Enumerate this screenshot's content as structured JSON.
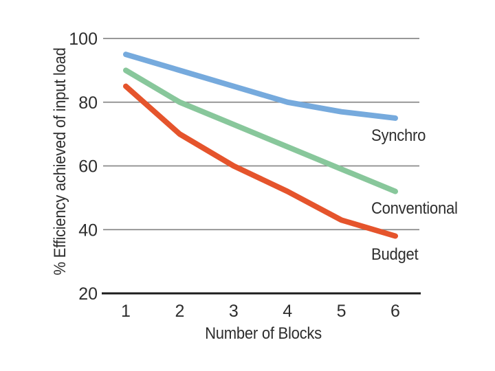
{
  "chart_data": {
    "type": "line",
    "title": "",
    "xlabel": "Number of Blocks",
    "ylabel": "% Efficiency achieved of input load",
    "x": [
      1,
      2,
      3,
      4,
      5,
      6
    ],
    "x_ticks": [
      "1",
      "2",
      "3",
      "4",
      "5",
      "6"
    ],
    "y_ticks": [
      100,
      80,
      60,
      40,
      20
    ],
    "ylim": [
      20,
      100
    ],
    "xlim": [
      1,
      6
    ],
    "grid": "horizontal gridlines at 100, 80, 60, 40; heavy black baseline at 20",
    "legend_position": "inline labels to the right of line ends",
    "series": [
      {
        "name": "Synchro",
        "color": "#76aadd",
        "values": [
          95,
          90,
          85,
          80,
          77,
          75
        ]
      },
      {
        "name": "Conventional",
        "color": "#88c79b",
        "values": [
          90,
          80,
          73,
          66,
          59,
          52
        ]
      },
      {
        "name": "Budget",
        "color": "#e5542c",
        "values": [
          85,
          70,
          60,
          52,
          43,
          38
        ]
      }
    ],
    "colors": {
      "gridline": "#8a8a8a",
      "baseline": "#1c1c1c",
      "text": "#2e2e2e",
      "background": "#ffffff"
    }
  }
}
